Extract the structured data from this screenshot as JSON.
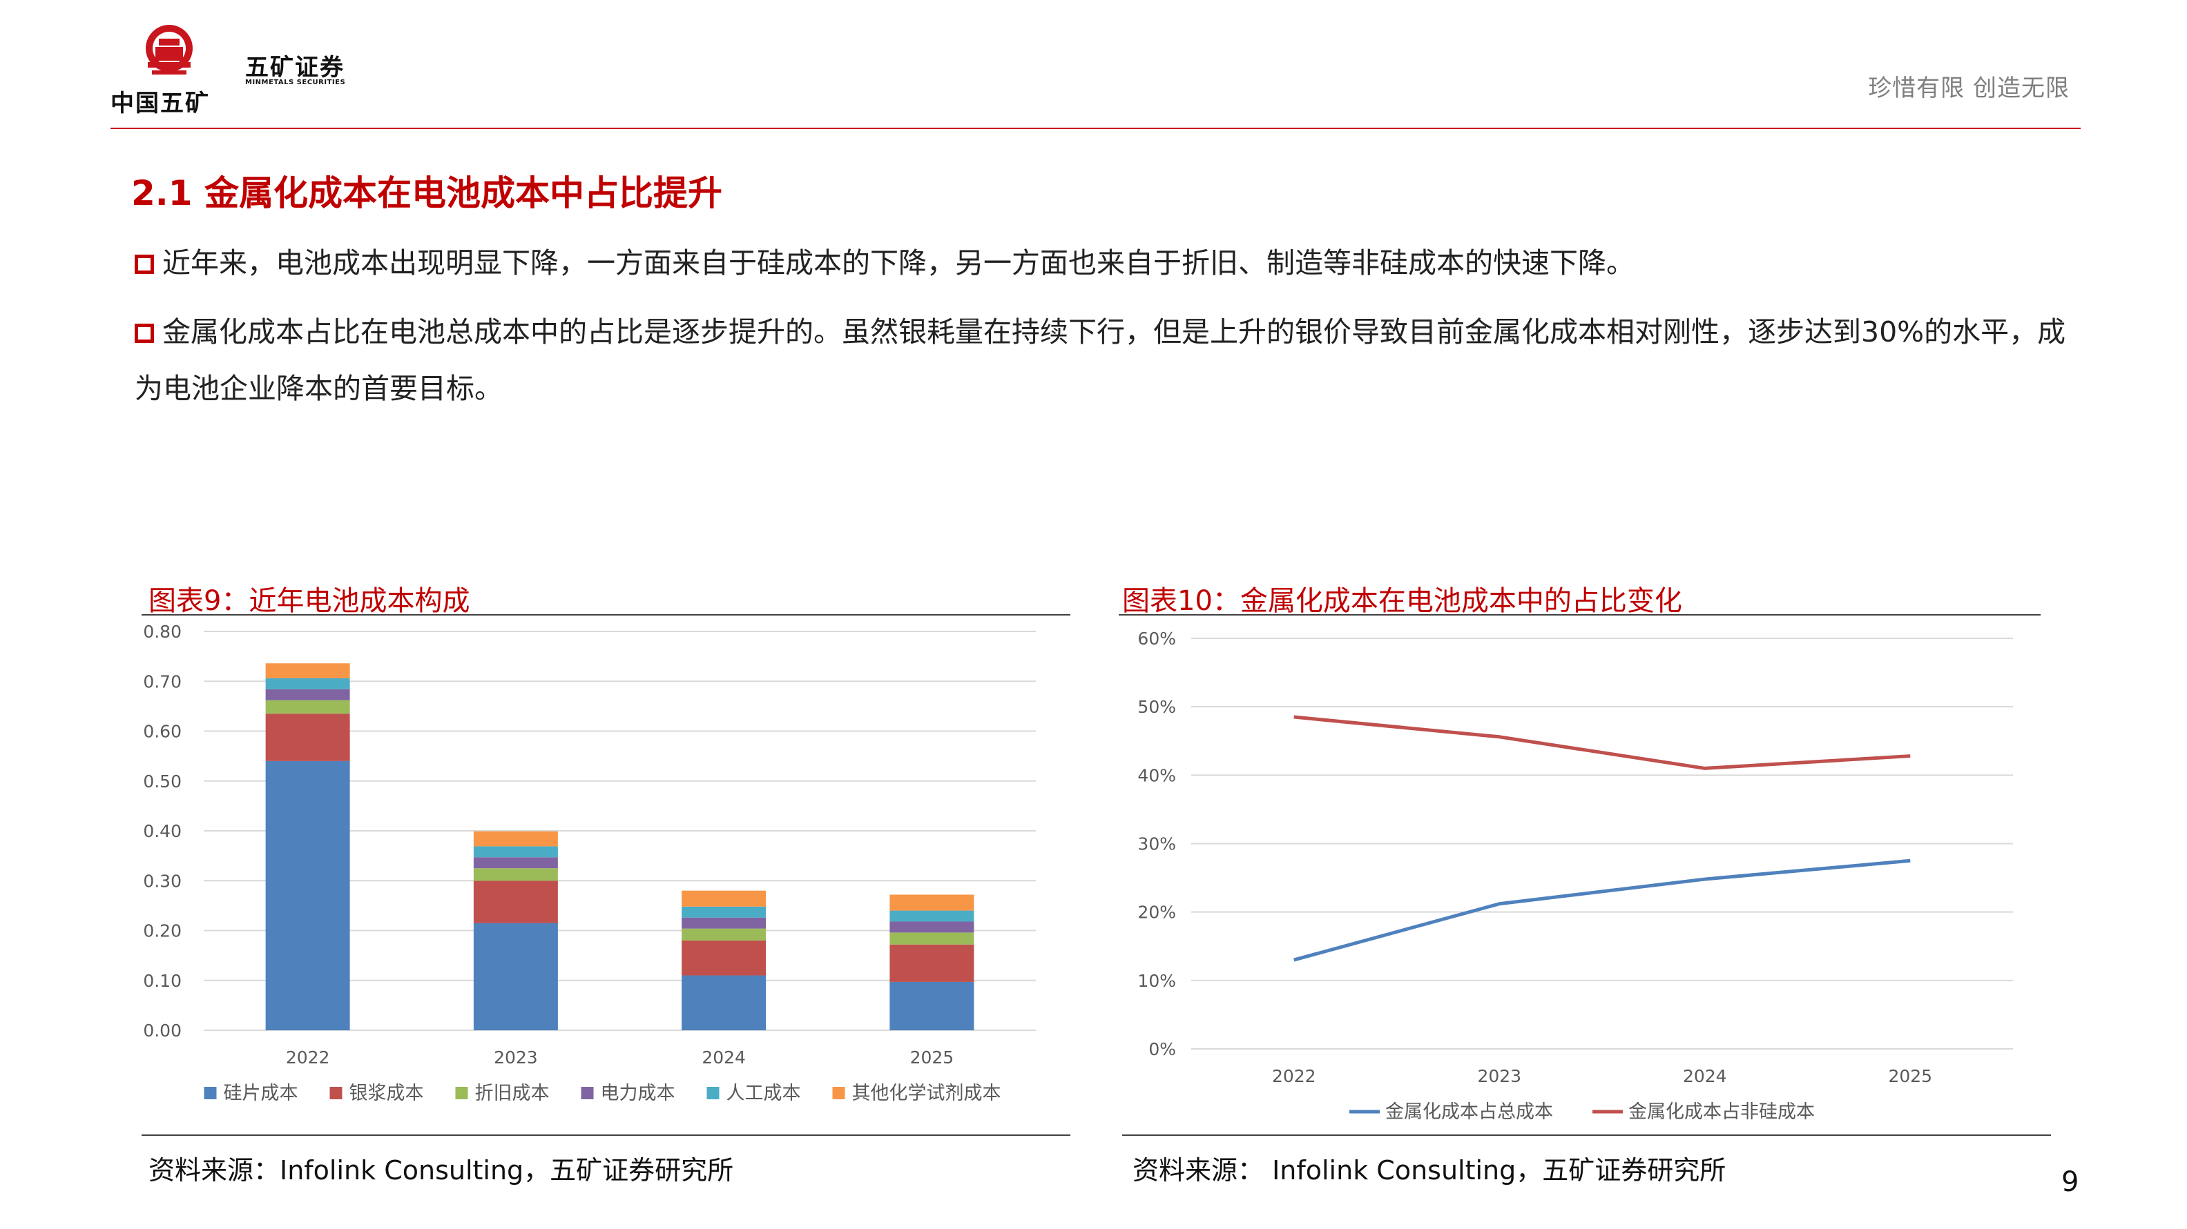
{
  "header": {
    "logo_group": "中国五矿",
    "logo_company_cn": "五矿证券",
    "logo_company_en": "MINMETALS SECURITIES",
    "slogan": "珍惜有限  创造无限",
    "brand_color": "#c9151e"
  },
  "section_title": "2.1 金属化成本在电池成本中占比提升",
  "bullets": [
    "近年来，电池成本出现明显下降，一方面来自于硅成本的下降，另一方面也来自于折旧、制造等非硅成本的快速下降。",
    "金属化成本占比在电池总成本中的占比是逐步提升的。虽然银耗量在持续下行，但是上升的银价导致目前金属化成本相对刚性，逐步达到30%的水平，成为电池企业降本的首要目标。"
  ],
  "figure_left": {
    "title": "图表9：近年电池成本构成",
    "source": "资料来源：Infolink Consulting，五矿证券研究所"
  },
  "figure_right": {
    "title": "图表10：金属化成本在电池成本中的占比变化",
    "source": "资料来源： Infolink Consulting，五矿证券研究所"
  },
  "page_number": "9",
  "chart_data": [
    {
      "type": "bar",
      "stacked": true,
      "categories": [
        "2022",
        "2023",
        "2024",
        "2025"
      ],
      "series": [
        {
          "name": "硅片成本",
          "color": "#4f81bd",
          "values": [
            0.54,
            0.215,
            0.11,
            0.097
          ]
        },
        {
          "name": "银浆成本",
          "color": "#c0504d",
          "values": [
            0.095,
            0.085,
            0.07,
            0.075
          ]
        },
        {
          "name": "折旧成本",
          "color": "#9bbb59",
          "values": [
            0.027,
            0.025,
            0.024,
            0.024
          ]
        },
        {
          "name": "电力成本",
          "color": "#8064a2",
          "values": [
            0.022,
            0.022,
            0.022,
            0.022
          ]
        },
        {
          "name": "人工成本",
          "color": "#4bacc6",
          "values": [
            0.022,
            0.022,
            0.022,
            0.022
          ]
        },
        {
          "name": "其他化学试剂成本",
          "color": "#f79646",
          "values": [
            0.03,
            0.03,
            0.032,
            0.032
          ]
        }
      ],
      "ylim": [
        0,
        0.8
      ],
      "yticks": [
        "0.00",
        "0.10",
        "0.20",
        "0.30",
        "0.40",
        "0.50",
        "0.60",
        "0.70",
        "0.80"
      ],
      "grid": true,
      "legend": "bottom"
    },
    {
      "type": "line",
      "x": [
        "2022",
        "2023",
        "2024",
        "2025"
      ],
      "series": [
        {
          "name": "金属化成本占总成本",
          "color": "#4f81bd",
          "values": [
            13,
            21.2,
            24.8,
            27.5
          ]
        },
        {
          "name": "金属化成本占非硅成本",
          "color": "#c0504d",
          "values": [
            48.5,
            45.6,
            41,
            42.8
          ]
        }
      ],
      "ylim": [
        0,
        60
      ],
      "yticks": [
        "0%",
        "10%",
        "20%",
        "30%",
        "40%",
        "50%",
        "60%"
      ],
      "grid": true,
      "legend": "bottom"
    }
  ]
}
